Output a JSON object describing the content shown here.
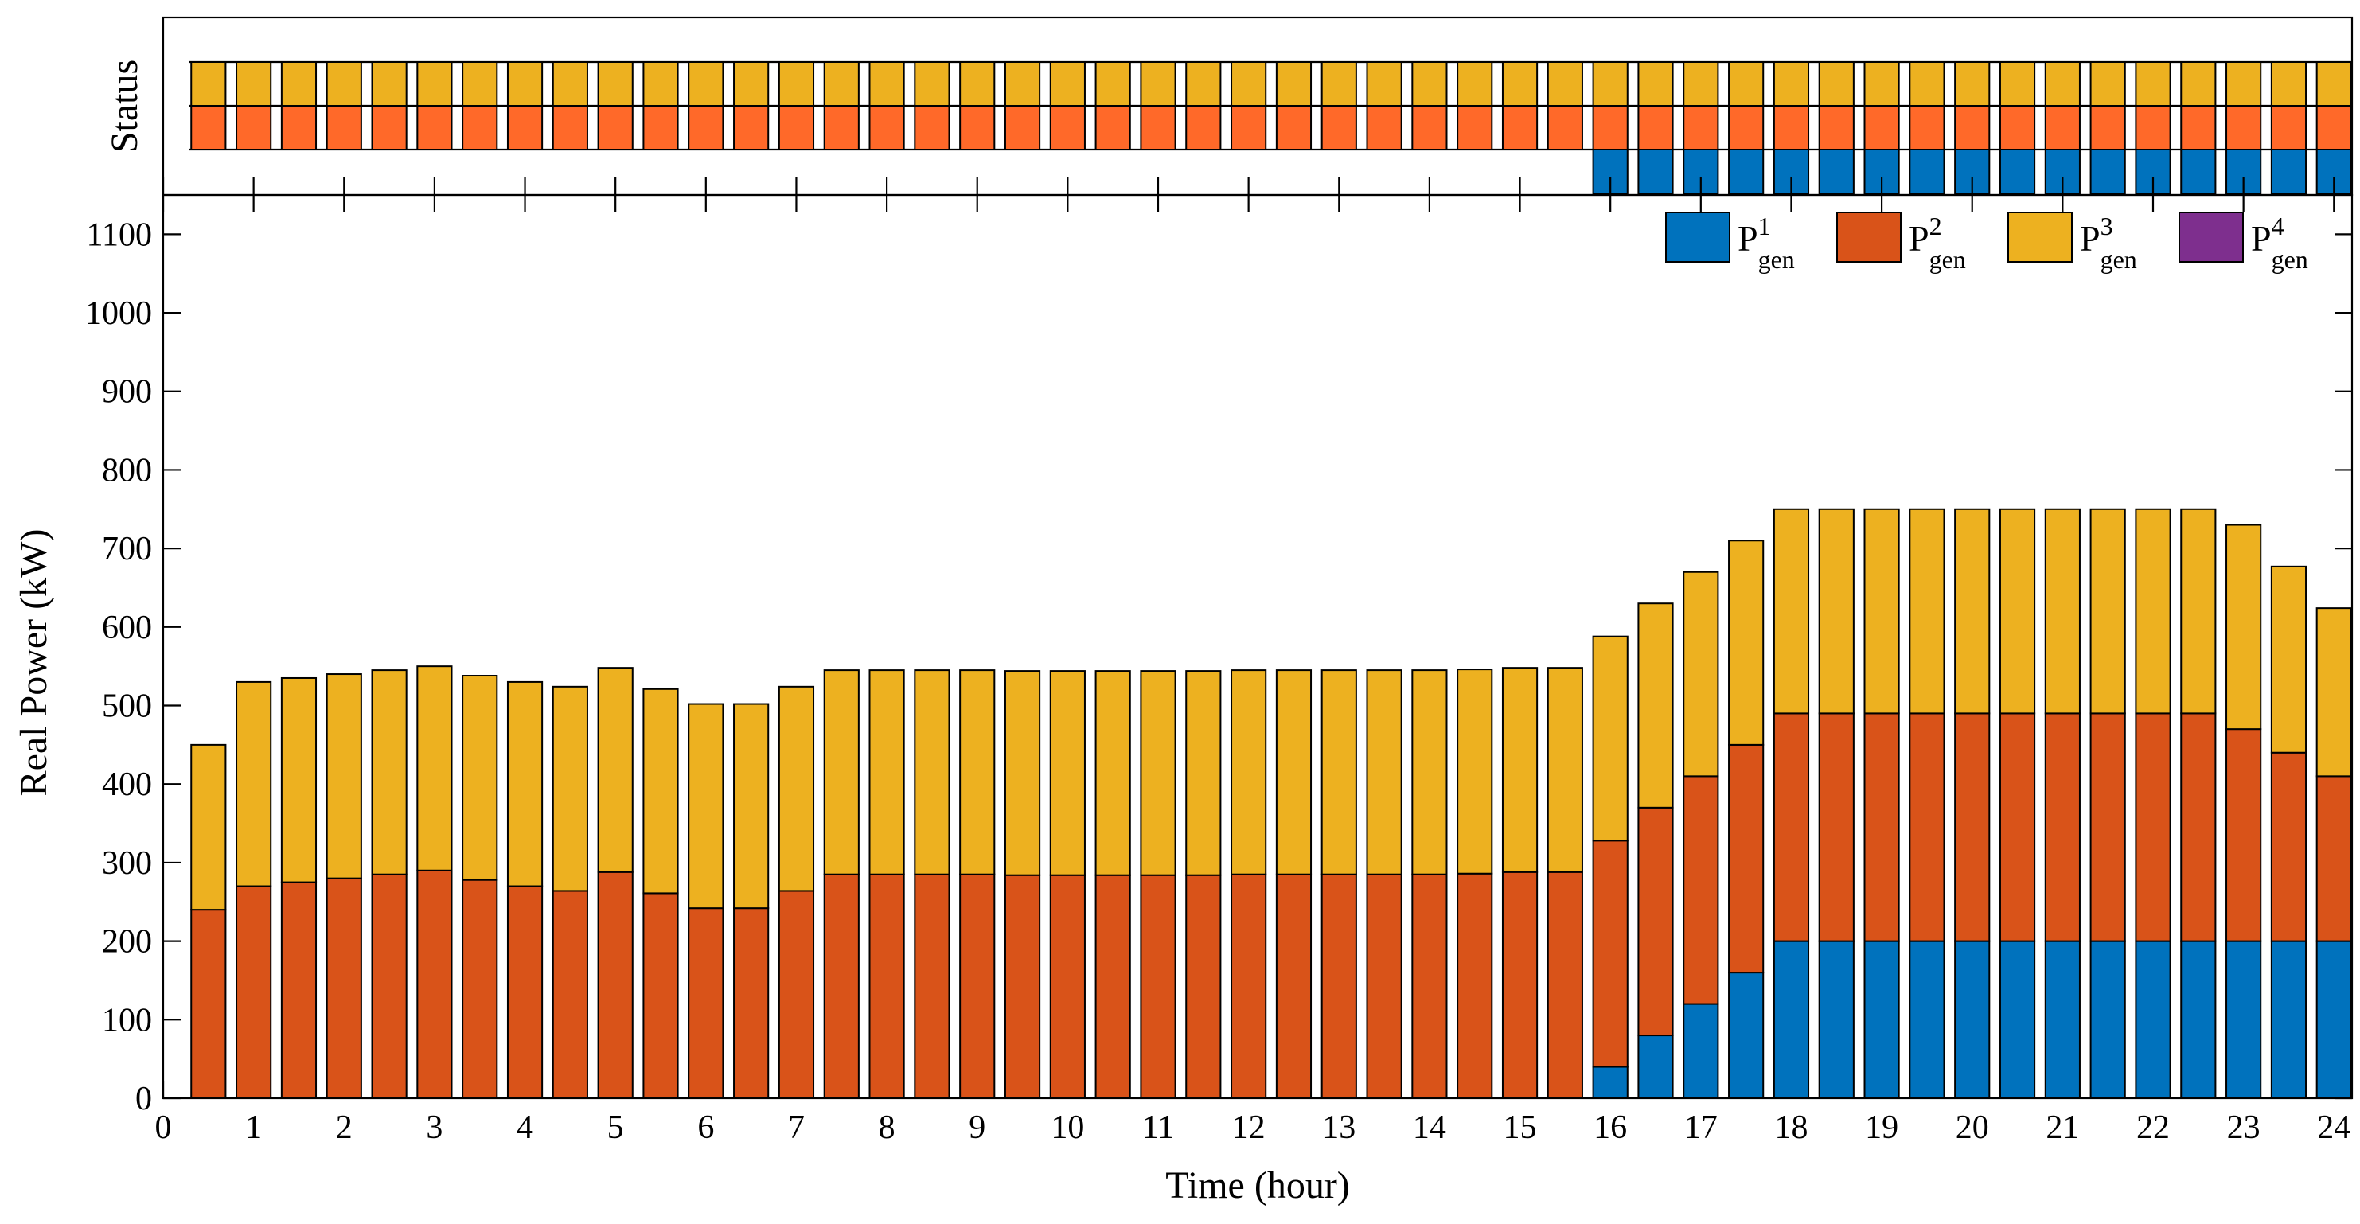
{
  "chart_data": [
    {
      "type": "bar",
      "stacked": true,
      "title": "",
      "xlabel": "Time (hour)",
      "ylabel": "Real Power (kW)",
      "xlim": [
        0,
        24.2
      ],
      "ylim": [
        0,
        1150
      ],
      "xticks": [
        0,
        1,
        2,
        3,
        4,
        5,
        6,
        7,
        8,
        9,
        10,
        11,
        12,
        13,
        14,
        15,
        16,
        17,
        18,
        19,
        20,
        21,
        22,
        23,
        24
      ],
      "yticks": [
        0,
        100,
        200,
        300,
        400,
        500,
        600,
        700,
        800,
        900,
        1000,
        1100
      ],
      "x": [
        0.5,
        1,
        1.5,
        2,
        2.5,
        3,
        3.5,
        4,
        4.5,
        5,
        5.5,
        6,
        6.5,
        7,
        7.5,
        8,
        8.5,
        9,
        9.5,
        10,
        10.5,
        11,
        11.5,
        12,
        12.5,
        13,
        13.5,
        14,
        14.5,
        15,
        15.5,
        16,
        16.5,
        17,
        17.5,
        18,
        18.5,
        19,
        19.5,
        20,
        20.5,
        21,
        21.5,
        22,
        22.5,
        23,
        23.5,
        24
      ],
      "legend_position": "top-right",
      "series": [
        {
          "name": "P",
          "sub": "gen",
          "sup": "1",
          "color": "#0072BD",
          "values": [
            0,
            0,
            0,
            0,
            0,
            0,
            0,
            0,
            0,
            0,
            0,
            0,
            0,
            0,
            0,
            0,
            0,
            0,
            0,
            0,
            0,
            0,
            0,
            0,
            0,
            0,
            0,
            0,
            0,
            0,
            0,
            40,
            80,
            120,
            160,
            200,
            200,
            200,
            200,
            200,
            200,
            200,
            200,
            200,
            200,
            200,
            200,
            200
          ]
        },
        {
          "name": "P",
          "sub": "gen",
          "sup": "2",
          "color": "#D95319",
          "values": [
            240,
            270,
            275,
            280,
            285,
            290,
            278,
            270,
            264,
            288,
            261,
            242,
            242,
            264,
            285,
            285,
            285,
            285,
            284,
            284,
            284,
            284,
            284,
            285,
            285,
            285,
            285,
            285,
            286,
            288,
            288,
            288,
            290,
            290,
            290,
            290,
            290,
            290,
            290,
            290,
            290,
            290,
            290,
            290,
            290,
            270,
            240,
            210
          ]
        },
        {
          "name": "P",
          "sub": "gen",
          "sup": "3",
          "color": "#EDB120",
          "values": [
            210,
            260,
            260,
            260,
            260,
            260,
            260,
            260,
            260,
            260,
            260,
            260,
            260,
            260,
            260,
            260,
            260,
            260,
            260,
            260,
            260,
            260,
            260,
            260,
            260,
            260,
            260,
            260,
            260,
            260,
            260,
            260,
            260,
            260,
            260,
            260,
            260,
            260,
            260,
            260,
            260,
            260,
            260,
            260,
            260,
            260,
            237,
            214
          ]
        },
        {
          "name": "P",
          "sub": "gen",
          "sup": "4",
          "color": "#7E2F8E",
          "values": [
            0,
            0,
            0,
            0,
            0,
            0,
            0,
            0,
            0,
            0,
            0,
            0,
            0,
            0,
            0,
            0,
            0,
            0,
            0,
            0,
            0,
            0,
            0,
            0,
            0,
            0,
            0,
            0,
            0,
            0,
            0,
            0,
            0,
            0,
            0,
            0,
            0,
            0,
            0,
            0,
            0,
            0,
            0,
            0,
            0,
            0,
            0,
            0
          ]
        }
      ]
    },
    {
      "type": "heatmap",
      "ylabel": "Status",
      "rows": [
        {
          "generator": 3,
          "color": "#EDB120",
          "on": [
            1,
            1,
            1,
            1,
            1,
            1,
            1,
            1,
            1,
            1,
            1,
            1,
            1,
            1,
            1,
            1,
            1,
            1,
            1,
            1,
            1,
            1,
            1,
            1,
            1,
            1,
            1,
            1,
            1,
            1,
            1,
            1,
            1,
            1,
            1,
            1,
            1,
            1,
            1,
            1,
            1,
            1,
            1,
            1,
            1,
            1,
            1,
            1
          ]
        },
        {
          "generator": 2,
          "color": "#FF6929",
          "on": [
            1,
            1,
            1,
            1,
            1,
            1,
            1,
            1,
            1,
            1,
            1,
            1,
            1,
            1,
            1,
            1,
            1,
            1,
            1,
            1,
            1,
            1,
            1,
            1,
            1,
            1,
            1,
            1,
            1,
            1,
            1,
            1,
            1,
            1,
            1,
            1,
            1,
            1,
            1,
            1,
            1,
            1,
            1,
            1,
            1,
            1,
            1,
            1
          ]
        },
        {
          "generator": 1,
          "color": "#0072BD",
          "on": [
            0,
            0,
            0,
            0,
            0,
            0,
            0,
            0,
            0,
            0,
            0,
            0,
            0,
            0,
            0,
            0,
            0,
            0,
            0,
            0,
            0,
            0,
            0,
            0,
            0,
            0,
            0,
            0,
            0,
            0,
            0,
            1,
            1,
            1,
            1,
            1,
            1,
            1,
            1,
            1,
            1,
            1,
            1,
            1,
            1,
            1,
            1,
            1
          ]
        }
      ]
    }
  ]
}
